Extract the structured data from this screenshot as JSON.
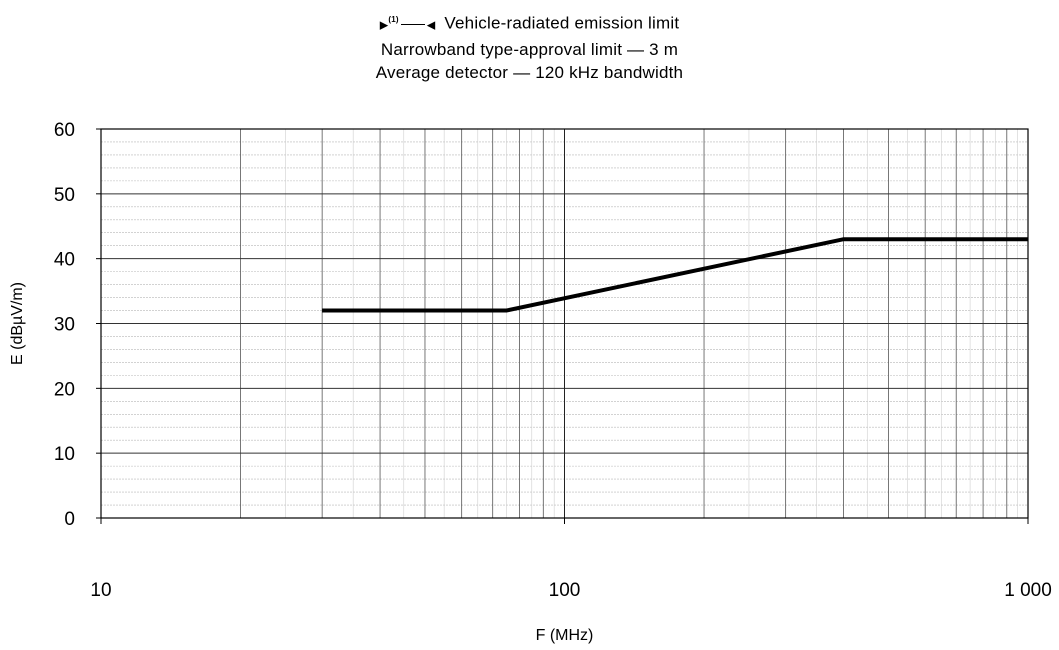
{
  "chart_data": {
    "type": "line",
    "legend": {
      "marker_note": "(1)",
      "label": "Vehicle-radiated emission limit"
    },
    "title_lines": [
      "Narrowband type-approval limit — 3 m",
      "Average detector — 120 kHz bandwidth"
    ],
    "xlabel": "F (MHz)",
    "ylabel": "E (dBµV/m)",
    "x_scale": "log",
    "xlim": [
      10,
      1000
    ],
    "ylim": [
      0,
      60
    ],
    "x_ticks": [
      10,
      100,
      1000
    ],
    "x_tick_labels": [
      "10",
      "100",
      "1 000"
    ],
    "y_ticks": [
      0,
      10,
      20,
      30,
      40,
      50,
      60
    ],
    "y_tick_labels": [
      "0",
      "10",
      "20",
      "30",
      "40",
      "50",
      "60"
    ],
    "grid": true,
    "series": [
      {
        "x": [
          30,
          75,
          400,
          1000
        ],
        "y": [
          32,
          32,
          43,
          43
        ]
      }
    ]
  }
}
